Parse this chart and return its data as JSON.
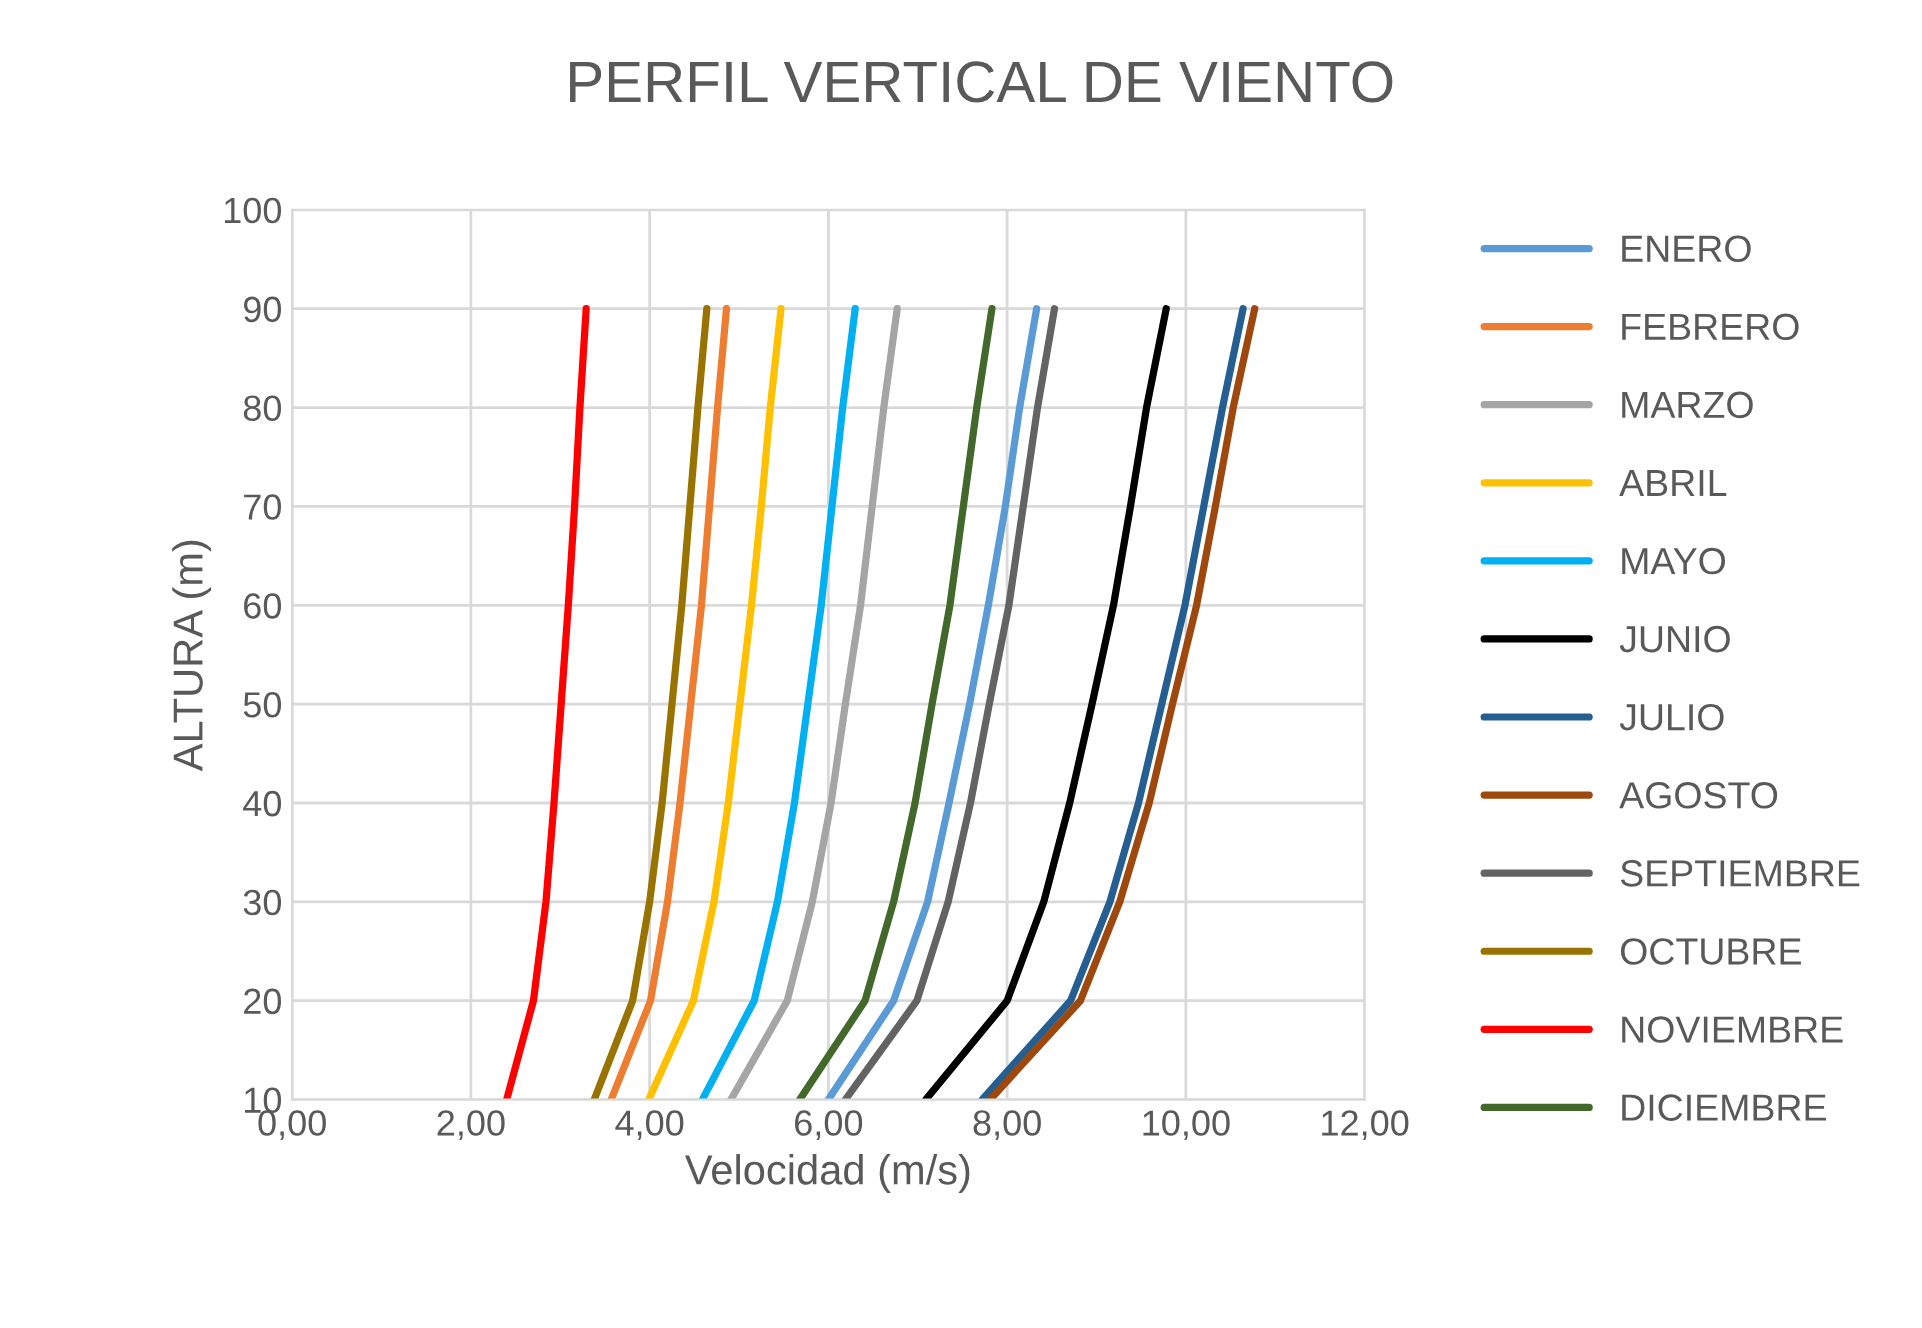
{
  "chart_data": {
    "type": "line",
    "title": "PERFIL VERTICAL DE VIENTO",
    "xlabel": "Velocidad (m/s)",
    "ylabel": "ALTURA (m)",
    "grid": true,
    "legend": "right",
    "marker": "none",
    "line_style": "solid",
    "xlim": [
      0,
      12
    ],
    "xticks": [
      {
        "value": 0,
        "label": "0,00"
      },
      {
        "value": 2,
        "label": "2,00"
      },
      {
        "value": 4,
        "label": "4,00"
      },
      {
        "value": 6,
        "label": "6,00"
      },
      {
        "value": 8,
        "label": "8,00"
      },
      {
        "value": 10,
        "label": "10,00"
      },
      {
        "value": 12,
        "label": "12,00"
      }
    ],
    "ylim": [
      10,
      100
    ],
    "yticks": [
      10,
      20,
      30,
      40,
      50,
      60,
      70,
      80,
      90,
      100
    ],
    "series": [
      {
        "name": "ENERO",
        "color": "#5b9bd5",
        "x": [
          6.0,
          6.73,
          7.11,
          7.35,
          7.58,
          7.79,
          7.98,
          8.14,
          8.33
        ],
        "values": [
          10,
          20,
          30,
          40,
          50,
          60,
          70,
          80,
          90
        ]
      },
      {
        "name": "FEBRERO",
        "color": "#ed7d31",
        "x": [
          3.57,
          4.01,
          4.2,
          4.34,
          4.46,
          4.58,
          4.67,
          4.76,
          4.86
        ],
        "values": [
          10,
          20,
          30,
          40,
          50,
          60,
          70,
          80,
          90
        ]
      },
      {
        "name": "MARZO",
        "color": "#a5a5a5",
        "x": [
          4.91,
          5.54,
          5.82,
          6.03,
          6.19,
          6.36,
          6.49,
          6.62,
          6.77
        ],
        "values": [
          10,
          20,
          30,
          40,
          50,
          60,
          70,
          80,
          90
        ]
      },
      {
        "name": "ABRIL",
        "color": "#ffc000",
        "x": [
          3.99,
          4.49,
          4.72,
          4.88,
          5.01,
          5.14,
          5.25,
          5.35,
          5.47
        ],
        "values": [
          10,
          20,
          30,
          40,
          50,
          60,
          70,
          80,
          90
        ]
      },
      {
        "name": "MAYO",
        "color": "#00b0f0",
        "x": [
          4.59,
          5.17,
          5.43,
          5.62,
          5.77,
          5.92,
          6.04,
          6.16,
          6.3
        ],
        "values": [
          10,
          20,
          30,
          40,
          50,
          60,
          70,
          80,
          90
        ]
      },
      {
        "name": "JUNIO",
        "color": "#000000",
        "x": [
          7.09,
          8.0,
          8.41,
          8.7,
          8.95,
          9.19,
          9.38,
          9.56,
          9.78
        ],
        "values": [
          10,
          20,
          30,
          40,
          50,
          60,
          70,
          80,
          90
        ]
      },
      {
        "name": "JULIO",
        "color": "#255e91",
        "x": [
          7.72,
          8.71,
          9.15,
          9.47,
          9.73,
          9.99,
          10.2,
          10.41,
          10.64
        ],
        "values": [
          10,
          20,
          30,
          40,
          50,
          60,
          70,
          80,
          90
        ]
      },
      {
        "name": "AGOSTO",
        "color": "#9e480e",
        "x": [
          7.81,
          8.82,
          9.26,
          9.59,
          9.85,
          10.12,
          10.33,
          10.53,
          10.77
        ],
        "values": [
          10,
          20,
          30,
          40,
          50,
          60,
          70,
          80,
          90
        ]
      },
      {
        "name": "SEPTIEMBRE",
        "color": "#636363",
        "x": [
          6.19,
          6.99,
          7.34,
          7.59,
          7.8,
          8.02,
          8.18,
          8.34,
          8.53
        ],
        "values": [
          10,
          20,
          30,
          40,
          50,
          60,
          70,
          80,
          90
        ]
      },
      {
        "name": "OCTUBRE",
        "color": "#997300",
        "x": [
          3.38,
          3.81,
          4.0,
          4.14,
          4.25,
          4.36,
          4.45,
          4.54,
          4.64
        ],
        "values": [
          10,
          20,
          30,
          40,
          50,
          60,
          70,
          80,
          90
        ]
      },
      {
        "name": "NOVIEMBRE",
        "color": "#ff0000",
        "x": [
          2.4,
          2.7,
          2.84,
          2.93,
          3.01,
          3.09,
          3.16,
          3.22,
          3.29
        ],
        "values": [
          10,
          20,
          30,
          40,
          50,
          60,
          70,
          80,
          90
        ]
      },
      {
        "name": "DICIEMBRE",
        "color": "#43682b",
        "x": [
          5.68,
          6.41,
          6.73,
          6.97,
          7.16,
          7.36,
          7.51,
          7.66,
          7.83
        ],
        "values": [
          10,
          20,
          30,
          40,
          50,
          60,
          70,
          80,
          90
        ]
      }
    ]
  }
}
